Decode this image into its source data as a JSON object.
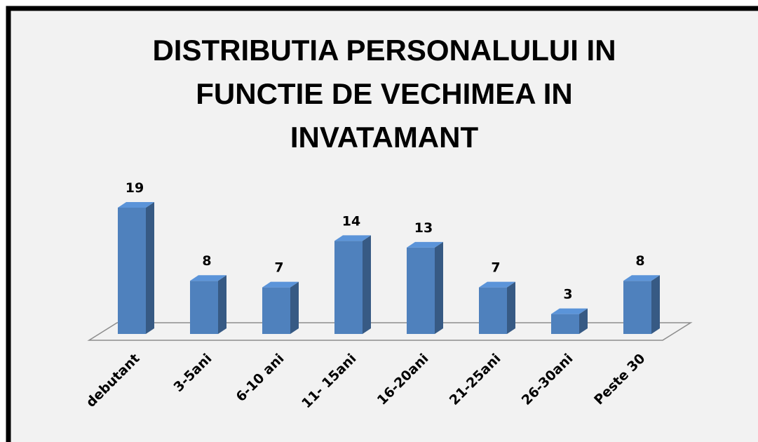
{
  "chart_data": {
    "type": "bar3d",
    "title": [
      "DISTRIBUTIA PERSONALULUI IN",
      "FUNCTIE DE VECHIMEA  IN",
      "INVATAMANT"
    ],
    "categories": [
      "debutant",
      "3-5ani",
      "6-10 ani",
      "11- 15ani",
      "16-20ani",
      "21-25ani",
      "26-30ani",
      "Peste 30"
    ],
    "values": [
      19,
      8,
      7,
      14,
      13,
      7,
      3,
      8
    ],
    "color": "#4f81bd"
  }
}
